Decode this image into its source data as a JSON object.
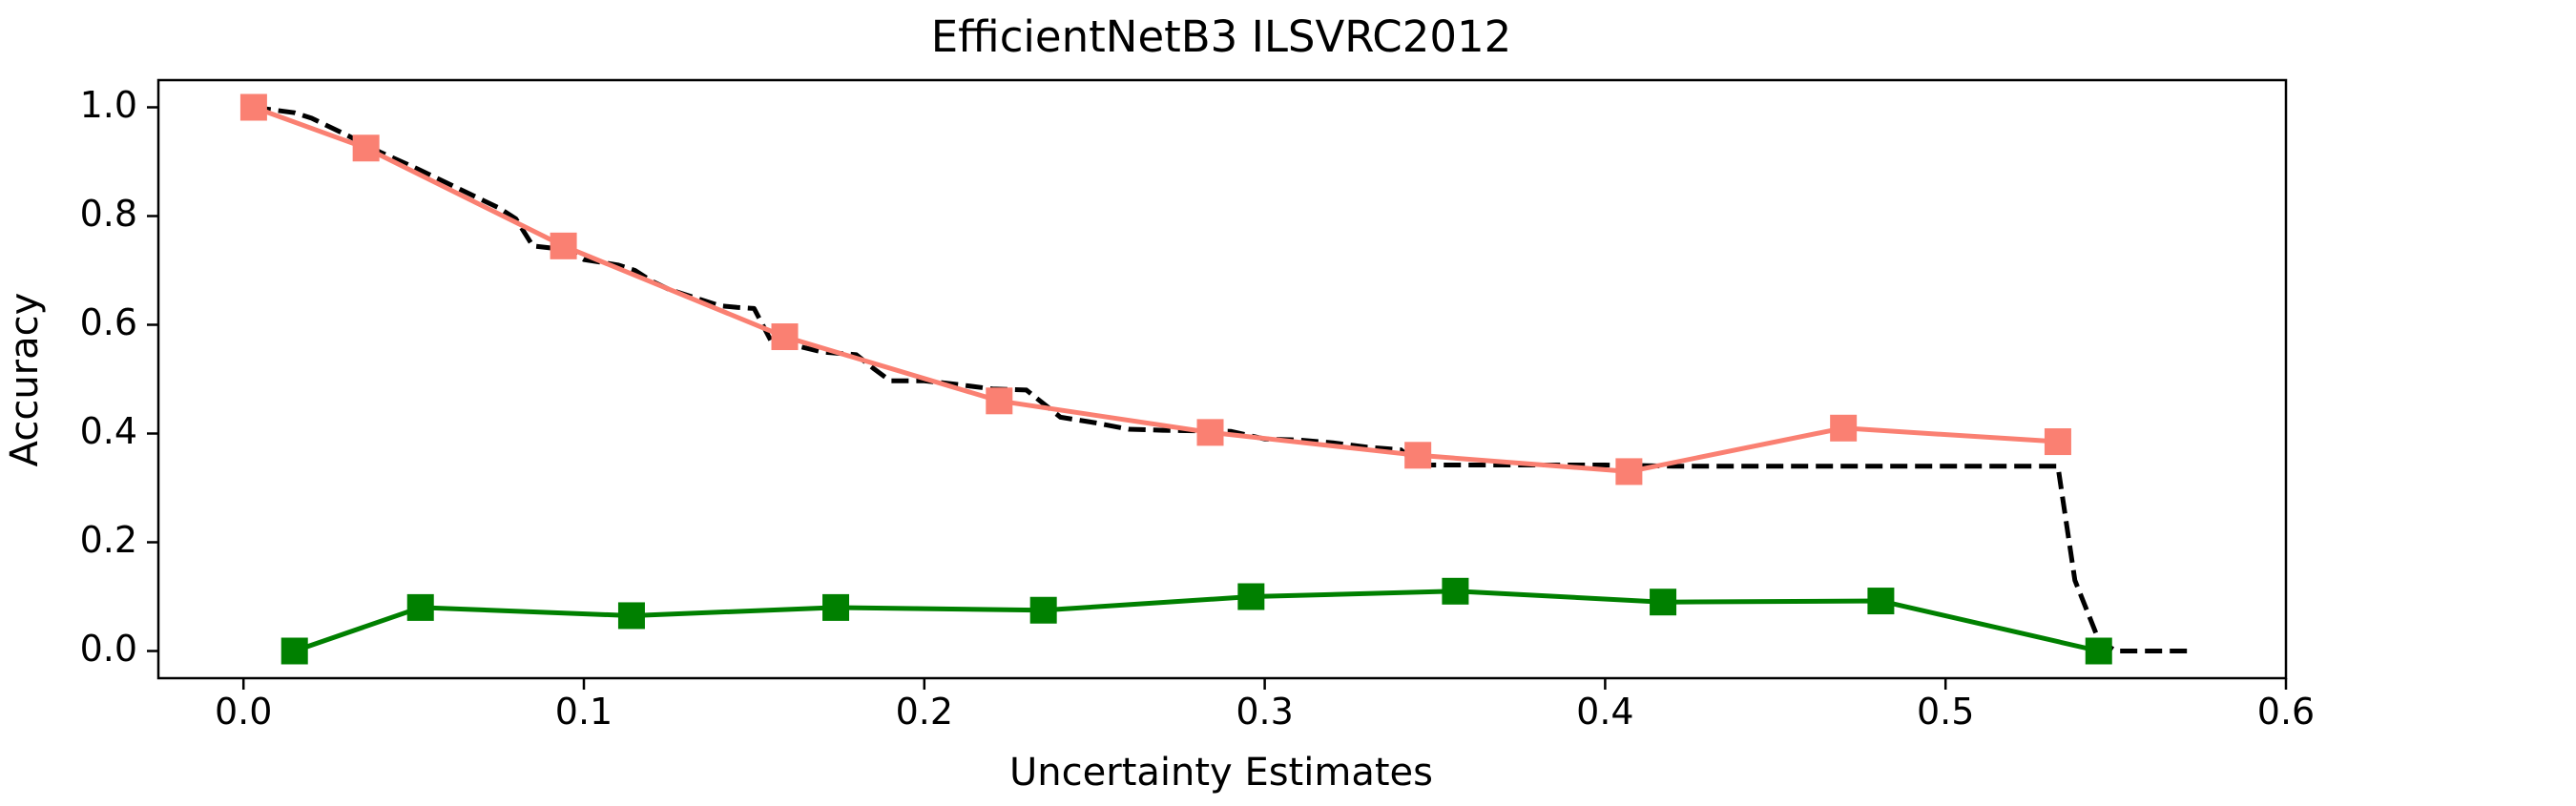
{
  "chart_data": {
    "type": "line",
    "title": "EfficientNetB3 ILSVRC2012",
    "xlabel": "Uncertainty Estimates",
    "ylabel": "Accuracy",
    "xlim": [
      -0.025,
      0.6
    ],
    "ylim": [
      -0.05,
      1.05
    ],
    "x_ticks": [
      0.0,
      0.1,
      0.2,
      0.3,
      0.4,
      0.5,
      0.6
    ],
    "x_tick_labels": [
      "0.0",
      "0.1",
      "0.2",
      "0.3",
      "0.4",
      "0.5",
      "0.6"
    ],
    "y_ticks": [
      0.0,
      0.2,
      0.4,
      0.6,
      0.8,
      1.0
    ],
    "y_tick_labels": [
      "0.0",
      "0.2",
      "0.4",
      "0.6",
      "0.8",
      "1.0"
    ],
    "grid": false,
    "legend": "none",
    "series": [
      {
        "key": "accuracy",
        "color": "#fa8072",
        "marker": "square",
        "line_style": "solid",
        "x": [
          0.003,
          0.036,
          0.094,
          0.159,
          0.222,
          0.284,
          0.345,
          0.407,
          0.47,
          0.533
        ],
        "y": [
          1.0,
          0.925,
          0.745,
          0.578,
          0.46,
          0.402,
          0.36,
          0.33,
          0.41,
          0.385
        ]
      },
      {
        "key": "calibration-error",
        "color": "#008000",
        "marker": "square",
        "line_style": "solid",
        "x": [
          0.015,
          0.052,
          0.114,
          0.174,
          0.235,
          0.296,
          0.356,
          0.417,
          0.481,
          0.545
        ],
        "y": [
          0.0,
          0.08,
          0.065,
          0.08,
          0.075,
          0.1,
          0.11,
          0.09,
          0.092,
          0.0
        ]
      },
      {
        "key": "ideal-reference",
        "color": "#000000",
        "marker": "none",
        "line_style": "dashed",
        "x": [
          0.003,
          0.015,
          0.02,
          0.03,
          0.04,
          0.05,
          0.06,
          0.07,
          0.075,
          0.08,
          0.085,
          0.095,
          0.1,
          0.11,
          0.115,
          0.12,
          0.125,
          0.13,
          0.14,
          0.145,
          0.15,
          0.155,
          0.16,
          0.17,
          0.18,
          0.185,
          0.19,
          0.2,
          0.21,
          0.22,
          0.23,
          0.24,
          0.25,
          0.26,
          0.27,
          0.28,
          0.29,
          0.3,
          0.31,
          0.32,
          0.33,
          0.34,
          0.345,
          0.36,
          0.38,
          0.4,
          0.42,
          0.45,
          0.48,
          0.51,
          0.53,
          0.533,
          0.538,
          0.545,
          0.55,
          0.573
        ],
        "y": [
          1.0,
          0.99,
          0.98,
          0.95,
          0.918,
          0.89,
          0.86,
          0.83,
          0.815,
          0.795,
          0.745,
          0.738,
          0.72,
          0.71,
          0.7,
          0.68,
          0.665,
          0.655,
          0.635,
          0.632,
          0.63,
          0.57,
          0.565,
          0.55,
          0.545,
          0.52,
          0.497,
          0.497,
          0.49,
          0.482,
          0.48,
          0.43,
          0.42,
          0.408,
          0.406,
          0.405,
          0.404,
          0.39,
          0.388,
          0.383,
          0.375,
          0.37,
          0.342,
          0.342,
          0.342,
          0.342,
          0.34,
          0.34,
          0.34,
          0.34,
          0.34,
          0.34,
          0.13,
          0.02,
          0.0,
          0.0
        ]
      }
    ]
  }
}
